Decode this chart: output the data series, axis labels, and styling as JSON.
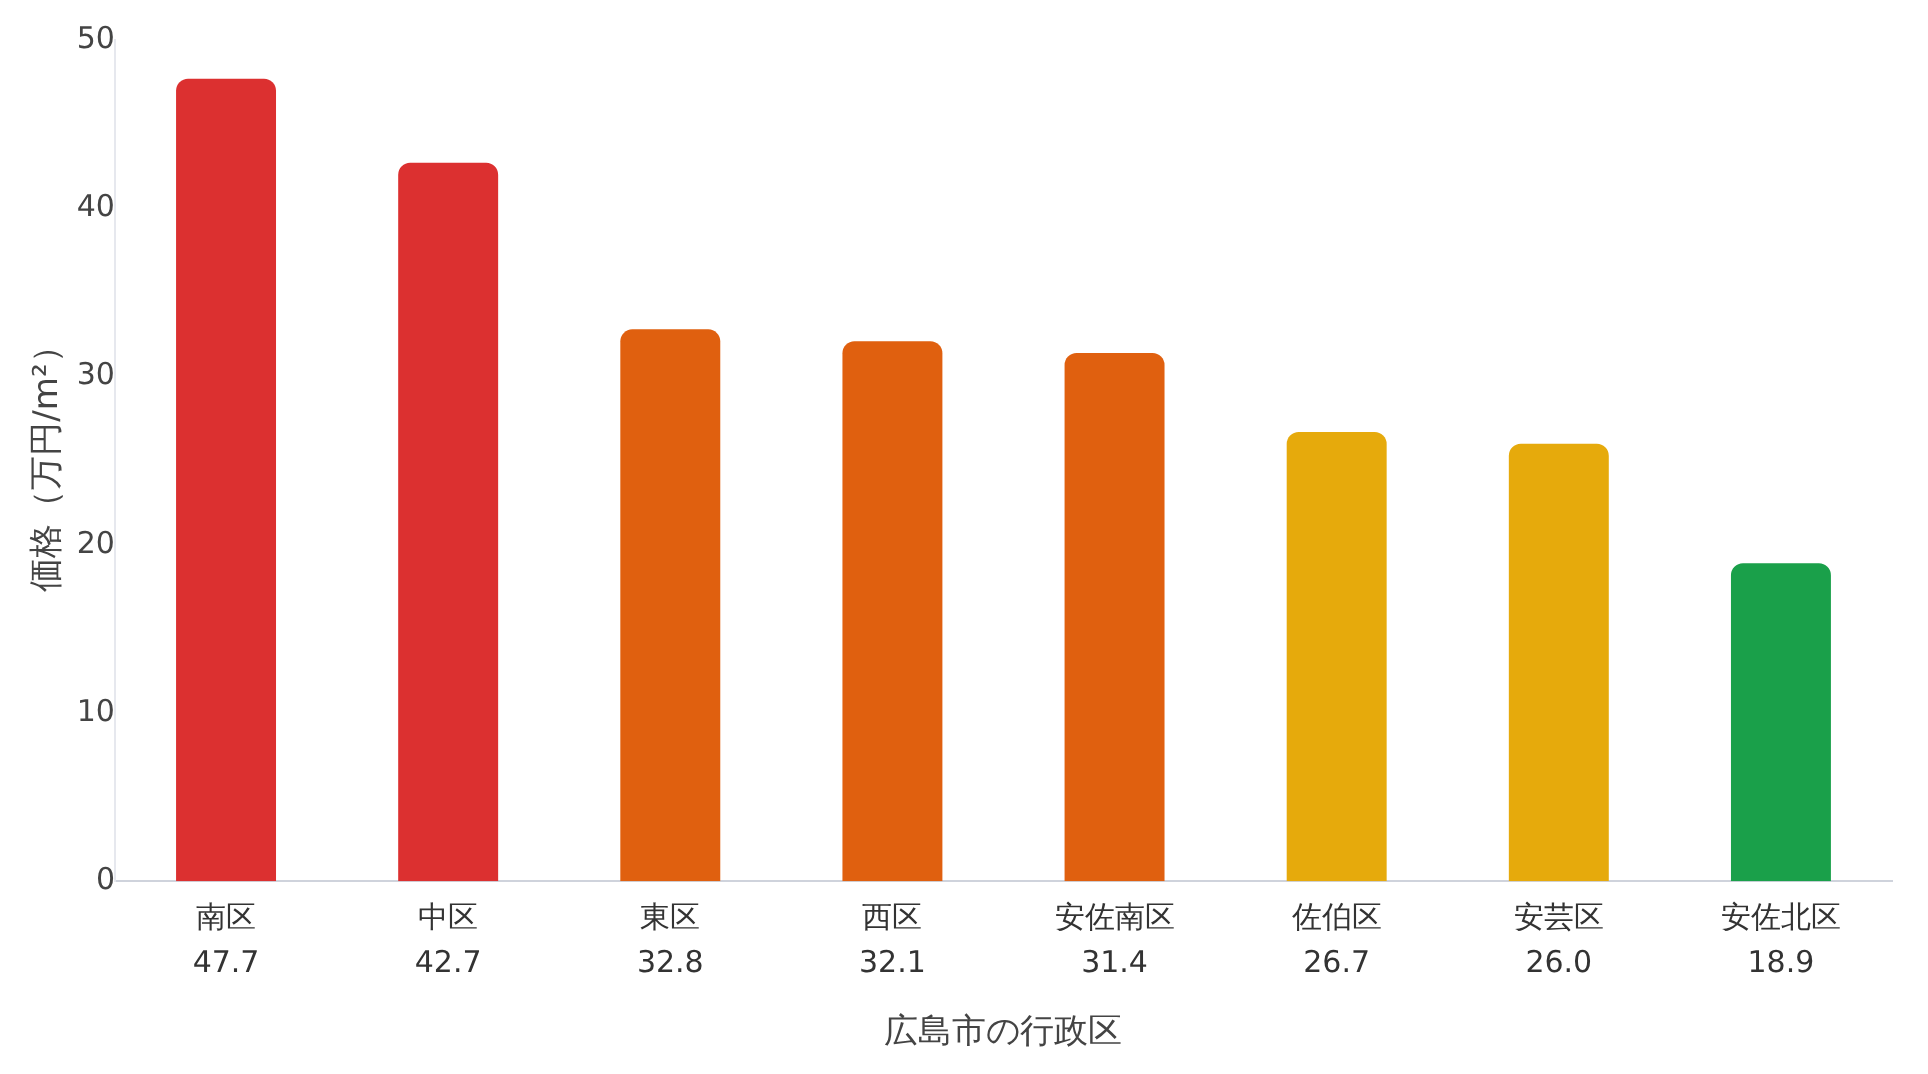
{
  "chart_data": {
    "type": "bar",
    "xlabel": "広島市の行政区",
    "ylabel": "価格（万円/m²）",
    "categories": [
      "南区",
      "中区",
      "東区",
      "西区",
      "安佐南区",
      "佐伯区",
      "安芸区",
      "安佐北区"
    ],
    "values": [
      47.7,
      42.7,
      32.8,
      32.1,
      31.4,
      26.7,
      26.0,
      18.9
    ],
    "colors": [
      "#dc3030",
      "#dc3030",
      "#e0600f",
      "#e0600f",
      "#e0600f",
      "#e6aa0c",
      "#e6aa0c",
      "#1aa04a"
    ],
    "value_labels": [
      "47.7",
      "42.7",
      "32.8",
      "32.1",
      "31.4",
      "26.7",
      "26.0",
      "18.9"
    ],
    "ylim": [
      0,
      50
    ],
    "yticks": [
      0,
      10,
      20,
      30,
      40,
      50
    ],
    "grid": false,
    "legend": false
  }
}
